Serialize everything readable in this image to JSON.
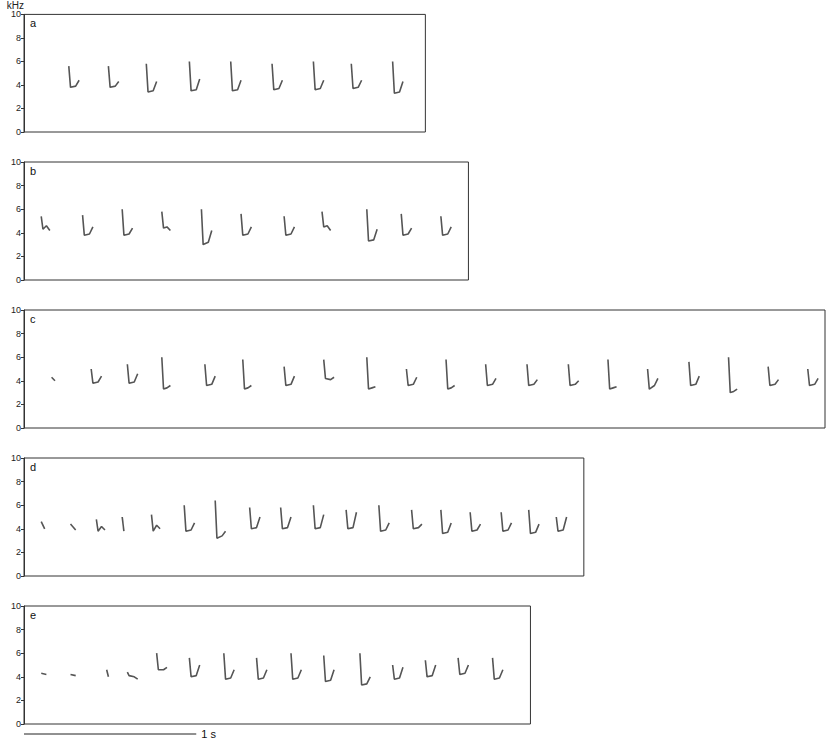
{
  "chart_data": {
    "type": "line",
    "y_label": "kHz",
    "ylim": [
      0,
      10
    ],
    "yticks": [
      0,
      2,
      4,
      6,
      8,
      10
    ],
    "tick_labels": "y",
    "grid": false,
    "color": "#555555",
    "scale_bar": {
      "value": 1,
      "label": "1 s"
    },
    "panels": [
      {
        "label": "a",
        "xlim": [
          0,
          2.33
        ],
        "notes": [
          {
            "x": [
              0.26,
              0.27,
              0.3,
              0.32
            ],
            "values": [
              5.6,
              3.8,
              3.9,
              4.4
            ]
          },
          {
            "x": [
              0.49,
              0.5,
              0.53,
              0.55
            ],
            "values": [
              5.6,
              3.8,
              3.9,
              4.3
            ]
          },
          {
            "x": [
              0.71,
              0.72,
              0.75,
              0.77
            ],
            "values": [
              5.8,
              3.4,
              3.5,
              4.3
            ]
          },
          {
            "x": [
              0.96,
              0.97,
              1.0,
              1.02
            ],
            "values": [
              6.0,
              3.5,
              3.6,
              4.5
            ]
          },
          {
            "x": [
              1.2,
              1.21,
              1.24,
              1.26
            ],
            "values": [
              6.0,
              3.5,
              3.6,
              4.4
            ]
          },
          {
            "x": [
              1.44,
              1.45,
              1.48,
              1.5
            ],
            "values": [
              5.8,
              3.6,
              3.7,
              4.4
            ]
          },
          {
            "x": [
              1.68,
              1.69,
              1.72,
              1.74
            ],
            "values": [
              6.0,
              3.6,
              3.7,
              4.4
            ]
          },
          {
            "x": [
              1.9,
              1.91,
              1.94,
              1.96
            ],
            "values": [
              5.8,
              3.7,
              3.8,
              4.4
            ]
          },
          {
            "x": [
              2.14,
              2.15,
              2.18,
              2.2
            ],
            "values": [
              6.0,
              3.3,
              3.4,
              4.3
            ]
          }
        ]
      },
      {
        "label": "b",
        "xlim": [
          0,
          2.58
        ],
        "notes": [
          {
            "x": [
              0.1,
              0.11,
              0.13,
              0.15
            ],
            "values": [
              5.4,
              4.3,
              4.6,
              4.2
            ]
          },
          {
            "x": [
              0.34,
              0.35,
              0.38,
              0.4
            ],
            "values": [
              5.5,
              3.8,
              3.9,
              4.5
            ]
          },
          {
            "x": [
              0.57,
              0.58,
              0.61,
              0.63
            ],
            "values": [
              6.0,
              3.8,
              3.9,
              4.4
            ]
          },
          {
            "x": [
              0.8,
              0.81,
              0.83,
              0.85
            ],
            "values": [
              5.8,
              4.4,
              4.5,
              4.2
            ]
          },
          {
            "x": [
              1.03,
              1.04,
              1.07,
              1.09
            ],
            "values": [
              6.0,
              3.0,
              3.2,
              4.2
            ]
          },
          {
            "x": [
              1.26,
              1.27,
              1.3,
              1.32
            ],
            "values": [
              5.6,
              3.8,
              3.9,
              4.5
            ]
          },
          {
            "x": [
              1.51,
              1.52,
              1.55,
              1.57
            ],
            "values": [
              5.4,
              3.8,
              3.9,
              4.5
            ]
          },
          {
            "x": [
              1.73,
              1.74,
              1.76,
              1.78
            ],
            "values": [
              5.8,
              4.5,
              4.6,
              4.2
            ]
          },
          {
            "x": [
              1.99,
              2.0,
              2.03,
              2.05
            ],
            "values": [
              6.0,
              3.3,
              3.4,
              4.3
            ]
          },
          {
            "x": [
              2.19,
              2.2,
              2.23,
              2.25
            ],
            "values": [
              5.6,
              3.8,
              3.9,
              4.4
            ]
          },
          {
            "x": [
              2.42,
              2.43,
              2.46,
              2.48
            ],
            "values": [
              5.4,
              3.8,
              3.9,
              4.5
            ]
          }
        ]
      },
      {
        "label": "c",
        "xlim": [
          0,
          4.65
        ],
        "notes": [
          {
            "x": [
              0.16,
              0.18
            ],
            "values": [
              4.3,
              4.0
            ]
          },
          {
            "x": [
              0.39,
              0.4,
              0.43,
              0.45
            ],
            "values": [
              5.0,
              3.8,
              3.9,
              4.4
            ]
          },
          {
            "x": [
              0.6,
              0.61,
              0.64,
              0.66
            ],
            "values": [
              5.4,
              3.8,
              3.9,
              4.6
            ]
          },
          {
            "x": [
              0.8,
              0.81,
              0.83,
              0.85
            ],
            "values": [
              6.0,
              3.3,
              3.4,
              3.6
            ]
          },
          {
            "x": [
              1.05,
              1.06,
              1.09,
              1.11
            ],
            "values": [
              5.4,
              3.6,
              3.7,
              4.4
            ]
          },
          {
            "x": [
              1.27,
              1.28,
              1.3,
              1.32
            ],
            "values": [
              5.8,
              3.3,
              3.4,
              3.6
            ]
          },
          {
            "x": [
              1.51,
              1.52,
              1.55,
              1.57
            ],
            "values": [
              5.2,
              3.6,
              3.7,
              4.4
            ]
          },
          {
            "x": [
              1.74,
              1.75,
              1.78,
              1.8
            ],
            "values": [
              5.8,
              4.2,
              4.1,
              4.3
            ]
          },
          {
            "x": [
              1.99,
              2.0,
              2.02,
              2.04
            ],
            "values": [
              6.0,
              3.3,
              3.4,
              3.5
            ]
          },
          {
            "x": [
              2.22,
              2.23,
              2.26,
              2.28
            ],
            "values": [
              5.0,
              3.6,
              3.7,
              4.3
            ]
          },
          {
            "x": [
              2.45,
              2.46,
              2.48,
              2.5
            ],
            "values": [
              5.8,
              3.3,
              3.4,
              3.6
            ]
          },
          {
            "x": [
              2.68,
              2.69,
              2.72,
              2.74
            ],
            "values": [
              5.4,
              3.6,
              3.7,
              4.2
            ]
          },
          {
            "x": [
              2.92,
              2.93,
              2.96,
              2.98
            ],
            "values": [
              5.4,
              3.6,
              3.7,
              4.1
            ]
          },
          {
            "x": [
              3.16,
              3.17,
              3.2,
              3.22
            ],
            "values": [
              5.4,
              3.6,
              3.7,
              4.0
            ]
          },
          {
            "x": [
              3.39,
              3.4,
              3.42,
              3.44
            ],
            "values": [
              5.8,
              3.3,
              3.4,
              3.5
            ]
          },
          {
            "x": [
              3.62,
              3.63,
              3.66,
              3.68
            ],
            "values": [
              5.0,
              3.3,
              3.6,
              4.2
            ]
          },
          {
            "x": [
              3.86,
              3.87,
              3.9,
              3.92
            ],
            "values": [
              5.6,
              3.6,
              3.7,
              4.4
            ]
          },
          {
            "x": [
              4.09,
              4.1,
              4.12,
              4.14
            ],
            "values": [
              6.0,
              3.0,
              3.1,
              3.3
            ]
          },
          {
            "x": [
              4.32,
              4.33,
              4.36,
              4.38
            ],
            "values": [
              5.2,
              3.6,
              3.7,
              4.1
            ]
          },
          {
            "x": [
              4.55,
              4.56,
              4.59,
              4.61
            ],
            "values": [
              5.0,
              3.6,
              3.7,
              4.2
            ]
          }
        ]
      },
      {
        "label": "d",
        "xlim": [
          0,
          3.25
        ],
        "notes": [
          {
            "x": [
              0.1,
              0.12
            ],
            "values": [
              4.6,
              4.0
            ]
          },
          {
            "x": [
              0.27,
              0.3
            ],
            "values": [
              4.4,
              3.9
            ]
          },
          {
            "x": [
              0.42,
              0.43,
              0.45,
              0.47
            ],
            "values": [
              4.8,
              3.8,
              4.2,
              3.9
            ]
          },
          {
            "x": [
              0.57,
              0.58
            ],
            "values": [
              5.0,
              3.8
            ]
          },
          {
            "x": [
              0.74,
              0.75,
              0.77,
              0.79
            ],
            "values": [
              5.2,
              3.8,
              4.3,
              4.0
            ]
          },
          {
            "x": [
              0.93,
              0.94,
              0.97,
              0.99
            ],
            "values": [
              6.0,
              3.8,
              3.9,
              4.5
            ]
          },
          {
            "x": [
              1.11,
              1.12,
              1.15,
              1.17
            ],
            "values": [
              6.4,
              3.2,
              3.4,
              3.8
            ]
          },
          {
            "x": [
              1.31,
              1.32,
              1.35,
              1.37
            ],
            "values": [
              5.8,
              4.0,
              4.1,
              5.0
            ]
          },
          {
            "x": [
              1.49,
              1.5,
              1.53,
              1.55
            ],
            "values": [
              5.8,
              4.0,
              4.1,
              5.0
            ]
          },
          {
            "x": [
              1.68,
              1.69,
              1.72,
              1.74
            ],
            "values": [
              6.0,
              4.0,
              4.1,
              5.2
            ]
          },
          {
            "x": [
              1.87,
              1.88,
              1.91,
              1.93
            ],
            "values": [
              5.6,
              4.0,
              4.1,
              5.4
            ]
          },
          {
            "x": [
              2.06,
              2.07,
              2.1,
              2.12
            ],
            "values": [
              6.0,
              3.8,
              3.9,
              4.5
            ]
          },
          {
            "x": [
              2.25,
              2.26,
              2.29,
              2.31
            ],
            "values": [
              5.6,
              4.0,
              4.1,
              4.4
            ]
          },
          {
            "x": [
              2.42,
              2.43,
              2.46,
              2.48
            ],
            "values": [
              5.6,
              3.6,
              3.7,
              4.5
            ]
          },
          {
            "x": [
              2.59,
              2.6,
              2.63,
              2.65
            ],
            "values": [
              5.4,
              3.8,
              3.9,
              4.4
            ]
          },
          {
            "x": [
              2.77,
              2.78,
              2.81,
              2.83
            ],
            "values": [
              5.4,
              3.8,
              3.9,
              4.5
            ]
          },
          {
            "x": [
              2.93,
              2.94,
              2.97,
              2.99
            ],
            "values": [
              5.6,
              3.6,
              3.7,
              4.4
            ]
          },
          {
            "x": [
              3.09,
              3.1,
              3.13,
              3.15
            ],
            "values": [
              5.0,
              3.8,
              3.9,
              5.0
            ]
          }
        ]
      },
      {
        "label": "e",
        "xlim": [
          0,
          2.94
        ],
        "notes": [
          {
            "x": [
              0.1,
              0.13
            ],
            "values": [
              4.3,
              4.2
            ]
          },
          {
            "x": [
              0.27,
              0.3
            ],
            "values": [
              4.2,
              4.1
            ]
          },
          {
            "x": [
              0.48,
              0.49
            ],
            "values": [
              4.6,
              4.0
            ]
          },
          {
            "x": [
              0.6,
              0.61,
              0.64,
              0.66
            ],
            "values": [
              4.4,
              4.1,
              4.0,
              3.8
            ]
          },
          {
            "x": [
              0.77,
              0.78,
              0.81,
              0.83
            ],
            "values": [
              6.0,
              4.6,
              4.6,
              4.8
            ]
          },
          {
            "x": [
              0.96,
              0.97,
              1.0,
              1.02
            ],
            "values": [
              5.6,
              4.0,
              4.1,
              5.0
            ]
          },
          {
            "x": [
              1.16,
              1.17,
              1.2,
              1.22
            ],
            "values": [
              6.0,
              3.8,
              3.9,
              4.6
            ]
          },
          {
            "x": [
              1.35,
              1.36,
              1.39,
              1.41
            ],
            "values": [
              5.6,
              3.8,
              3.9,
              4.6
            ]
          },
          {
            "x": [
              1.55,
              1.56,
              1.59,
              1.61
            ],
            "values": [
              6.0,
              3.8,
              3.9,
              4.6
            ]
          },
          {
            "x": [
              1.74,
              1.75,
              1.78,
              1.8
            ],
            "values": [
              5.8,
              3.6,
              3.7,
              4.6
            ]
          },
          {
            "x": [
              1.95,
              1.96,
              1.99,
              2.01
            ],
            "values": [
              6.0,
              3.3,
              3.4,
              4.0
            ]
          },
          {
            "x": [
              2.14,
              2.15,
              2.18,
              2.2
            ],
            "values": [
              5.0,
              3.8,
              3.9,
              4.8
            ]
          },
          {
            "x": [
              2.33,
              2.34,
              2.37,
              2.39
            ],
            "values": [
              5.4,
              4.0,
              4.1,
              5.0
            ]
          },
          {
            "x": [
              2.52,
              2.53,
              2.56,
              2.58
            ],
            "values": [
              5.6,
              4.2,
              4.3,
              5.0
            ]
          },
          {
            "x": [
              2.72,
              2.73,
              2.76,
              2.78
            ],
            "values": [
              5.6,
              3.8,
              3.9,
              4.6
            ]
          }
        ]
      }
    ]
  }
}
